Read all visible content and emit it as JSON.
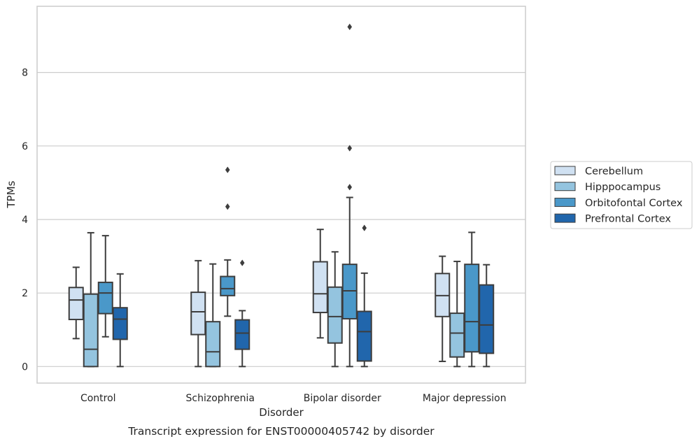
{
  "chart_data": {
    "type": "box",
    "title": "",
    "caption": "Transcript expression for ENST00000405742 by disorder",
    "xlabel": "Disorder",
    "ylabel": "TPMs",
    "ylim": [
      -0.45,
      9.8
    ],
    "yticks": [
      0,
      2,
      4,
      6,
      8
    ],
    "grid": "horizontal",
    "legend_position": "right",
    "categories": [
      "Control",
      "Schizophrenia",
      "Bipolar disorder",
      "Major depression"
    ],
    "series": [
      {
        "name": "Cerebellum",
        "color": "#d0e1f2",
        "boxes": [
          {
            "whisker_low": 0.76,
            "q1": 1.28,
            "median": 1.81,
            "q3": 2.15,
            "whisker_high": 2.7,
            "outliers": []
          },
          {
            "whisker_low": 0.0,
            "q1": 0.87,
            "median": 1.49,
            "q3": 2.02,
            "whisker_high": 2.88,
            "outliers": []
          },
          {
            "whisker_low": 0.78,
            "q1": 1.47,
            "median": 1.98,
            "q3": 2.85,
            "whisker_high": 3.73,
            "outliers": []
          },
          {
            "whisker_low": 0.14,
            "q1": 1.36,
            "median": 1.93,
            "q3": 2.53,
            "whisker_high": 3.0,
            "outliers": []
          }
        ]
      },
      {
        "name": "Hipppocampus",
        "color": "#94c4df",
        "boxes": [
          {
            "whisker_low": 0.0,
            "q1": 0.0,
            "median": 0.47,
            "q3": 1.97,
            "whisker_high": 3.64,
            "outliers": []
          },
          {
            "whisker_low": 0.0,
            "q1": 0.0,
            "median": 0.4,
            "q3": 1.22,
            "whisker_high": 2.79,
            "outliers": []
          },
          {
            "whisker_low": 0.0,
            "q1": 0.64,
            "median": 1.36,
            "q3": 2.16,
            "whisker_high": 3.12,
            "outliers": []
          },
          {
            "whisker_low": 0.0,
            "q1": 0.26,
            "median": 0.91,
            "q3": 1.45,
            "whisker_high": 2.86,
            "outliers": []
          }
        ]
      },
      {
        "name": "Orbitofontal Cortex",
        "color": "#4a98c9",
        "boxes": [
          {
            "whisker_low": 0.81,
            "q1": 1.44,
            "median": 2.0,
            "q3": 2.29,
            "whisker_high": 3.56,
            "outliers": []
          },
          {
            "whisker_low": 1.37,
            "q1": 1.93,
            "median": 2.12,
            "q3": 2.45,
            "whisker_high": 2.9,
            "outliers": [
              4.35,
              5.35
            ]
          },
          {
            "whisker_low": 0.0,
            "q1": 1.3,
            "median": 2.06,
            "q3": 2.78,
            "whisker_high": 4.6,
            "outliers": [
              4.88,
              5.94,
              9.24
            ]
          },
          {
            "whisker_low": 0.0,
            "q1": 0.4,
            "median": 1.22,
            "q3": 2.78,
            "whisker_high": 3.65,
            "outliers": []
          }
        ]
      },
      {
        "name": "Prefrontal Cortex",
        "color": "#2166ac",
        "boxes": [
          {
            "whisker_low": 0.0,
            "q1": 0.74,
            "median": 1.29,
            "q3": 1.6,
            "whisker_high": 2.52,
            "outliers": []
          },
          {
            "whisker_low": 0.0,
            "q1": 0.47,
            "median": 0.91,
            "q3": 1.27,
            "whisker_high": 1.52,
            "outliers": [
              2.82
            ]
          },
          {
            "whisker_low": 0.0,
            "q1": 0.15,
            "median": 0.95,
            "q3": 1.5,
            "whisker_high": 2.54,
            "outliers": [
              3.77
            ]
          },
          {
            "whisker_low": 0.0,
            "q1": 0.36,
            "median": 1.13,
            "q3": 2.22,
            "whisker_high": 2.77,
            "outliers": []
          }
        ]
      }
    ]
  }
}
